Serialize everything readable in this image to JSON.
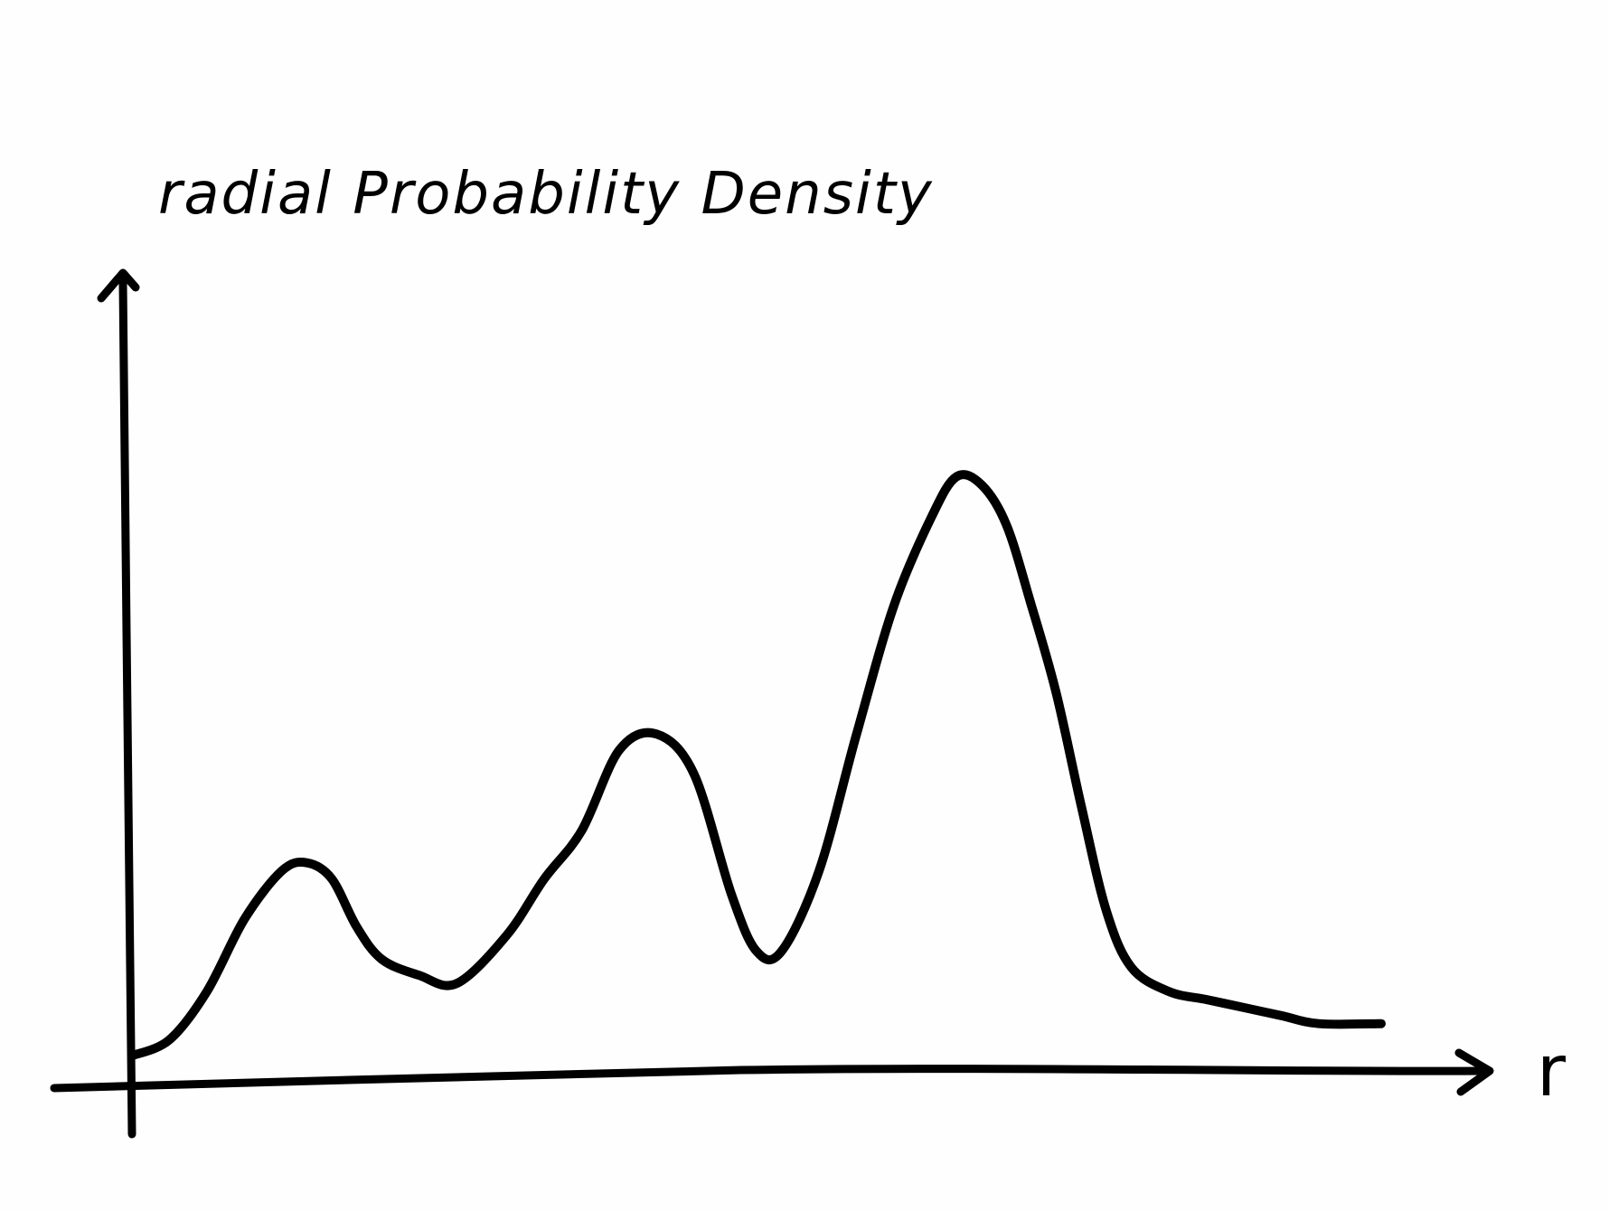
{
  "chart_data": {
    "type": "line",
    "title": "",
    "xlabel": "r",
    "ylabel": "radial Probability Density",
    "xlim": [
      0,
      10
    ],
    "ylim": [
      0,
      10
    ],
    "grid": false,
    "legend": "none",
    "series": [
      {
        "x": [
          0.0,
          0.3,
          0.6,
          0.9,
          1.2,
          1.4,
          1.6,
          1.8,
          2.0,
          2.3,
          2.6,
          3.0,
          3.3,
          3.6,
          3.9,
          4.2,
          4.5,
          4.8,
          5.0,
          5.2,
          5.5,
          5.8,
          6.1,
          6.4,
          6.6,
          6.8,
          7.0,
          7.2,
          7.4,
          7.6,
          7.8,
          8.0,
          8.3,
          8.6,
          8.9,
          9.2,
          9.5,
          10.0
        ],
        "y": [
          0.3,
          0.5,
          1.1,
          2.0,
          2.6,
          2.7,
          2.5,
          1.9,
          1.5,
          1.3,
          1.2,
          1.8,
          2.5,
          3.1,
          4.1,
          4.3,
          3.8,
          2.3,
          1.6,
          1.6,
          2.6,
          4.3,
          5.9,
          7.0,
          7.5,
          7.4,
          6.9,
          5.9,
          4.8,
          3.4,
          2.1,
          1.4,
          1.1,
          1.0,
          0.9,
          0.8,
          0.7,
          0.7
        ]
      }
    ]
  }
}
